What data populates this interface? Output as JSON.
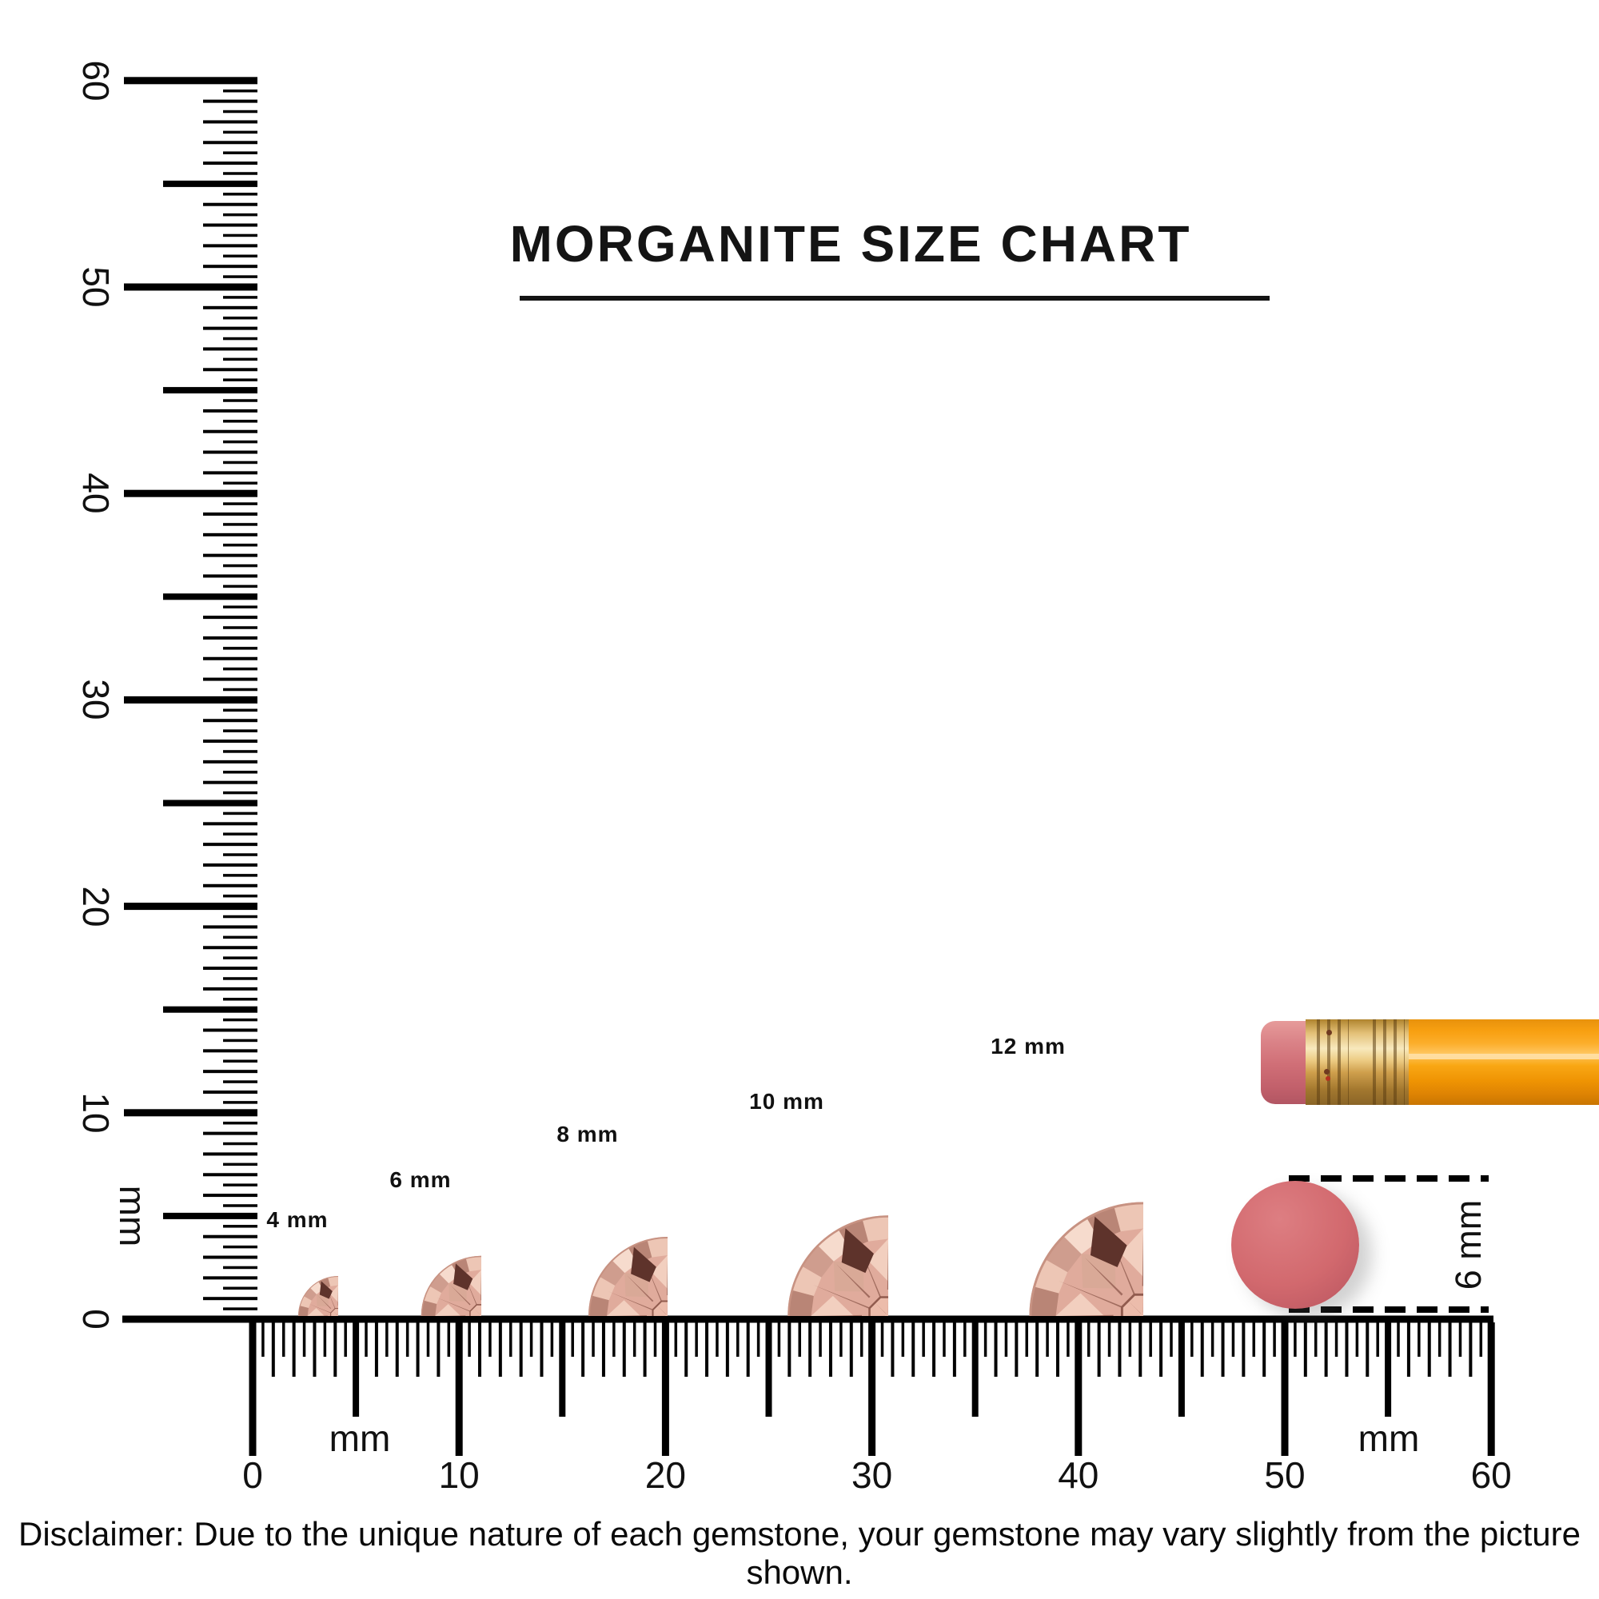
{
  "title": {
    "text": "MORGANITE SIZE CHART"
  },
  "rulers": {
    "vertical": {
      "tick_labels": [
        "0",
        "10",
        "20",
        "30",
        "40",
        "50",
        "60"
      ],
      "unit_label": "mm"
    },
    "horizontal": {
      "tick_labels": [
        "0",
        "10",
        "20",
        "30",
        "40",
        "50",
        "60"
      ],
      "unit_label_left": "mm",
      "unit_label_right": "mm"
    }
  },
  "stones": {
    "items": [
      {
        "label": "4 mm",
        "size_mm": 4
      },
      {
        "label": "6 mm",
        "size_mm": 6
      },
      {
        "label": "8 mm",
        "size_mm": 8
      },
      {
        "label": "10 mm",
        "size_mm": 10
      },
      {
        "label": "12 mm",
        "size_mm": 12
      }
    ]
  },
  "annotation": {
    "label": "6 mm"
  },
  "disclaimer": {
    "text": "Disclaimer: Due to the unique nature of each gemstone, your gemstone may vary slightly from the picture shown."
  },
  "colors": {
    "ink": "#000000",
    "gem_base": "#e0ab9c",
    "gem_light": "#f6dbcd",
    "gem_mid": "#cf9d8e",
    "gem_dark": "#5e332b",
    "gem_white_flash": "#fff6ee",
    "eraser_dot": "#d2696e",
    "pencil_body_orange": "#f8a011",
    "pencil_ferrule_gold": "#e3c077",
    "pencil_eraser_pink": "#d87f84"
  }
}
